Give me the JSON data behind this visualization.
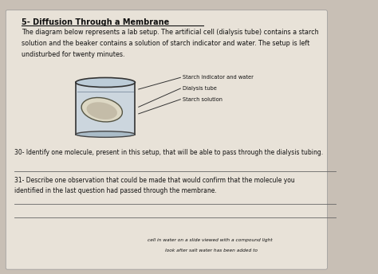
{
  "title": "5- Diffusion Through a Membrane",
  "para1": "The diagram below represents a lab setup. The artificial cell (dialysis tube) contains a starch",
  "para2": "solution and the beaker contains a solution of starch indicator and water. The setup is left",
  "para3": "undisturbed for twenty minutes.",
  "label1": "Starch indicator and water",
  "label2": "Dialysis tube",
  "label3": "Starch solution",
  "q30": "30- Identify one molecule, present in this setup, that will be able to pass through the dialysis tubing.",
  "q31a": "31- Describe one observation that could be made that would confirm that the molecule you",
  "q31b": "identified in the last question had passed through the membrane.",
  "bottom1": "cell in water on a slide viewed with a compound light",
  "bottom2": "look after salt water has been added to",
  "bg_color": "#c8bfb5",
  "paper_color": "#e8e2d8",
  "text_color": "#111111"
}
